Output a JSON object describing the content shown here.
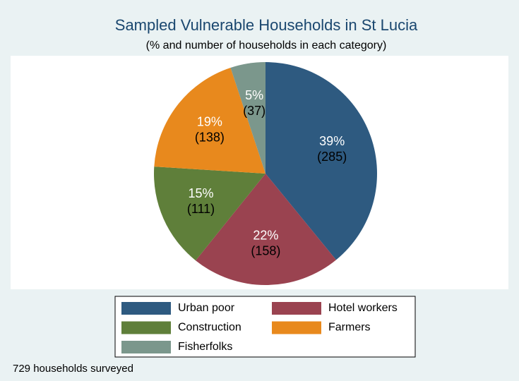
{
  "chart_data": {
    "type": "pie",
    "title": "Sampled Vulnerable Households in St Lucia",
    "subtitle": "(% and number of households in each category)",
    "note": "729 households surveyed",
    "categories": [
      "Urban poor",
      "Hotel workers",
      "Construction",
      "Farmers",
      "Fisherfolks"
    ],
    "values": [
      285,
      158,
      111,
      138,
      37
    ],
    "value_labels": [
      "(285)",
      "(158)",
      "(111)",
      "(138)",
      "(37)"
    ],
    "percents": [
      39,
      22,
      15,
      19,
      5
    ],
    "percent_labels": [
      "39%",
      "22%",
      "15%",
      "19%",
      "5%"
    ],
    "colors": [
      "#2e5a80",
      "#9a4350",
      "#5f7f3a",
      "#e8891d",
      "#7b978c"
    ],
    "legend": "bottom"
  }
}
